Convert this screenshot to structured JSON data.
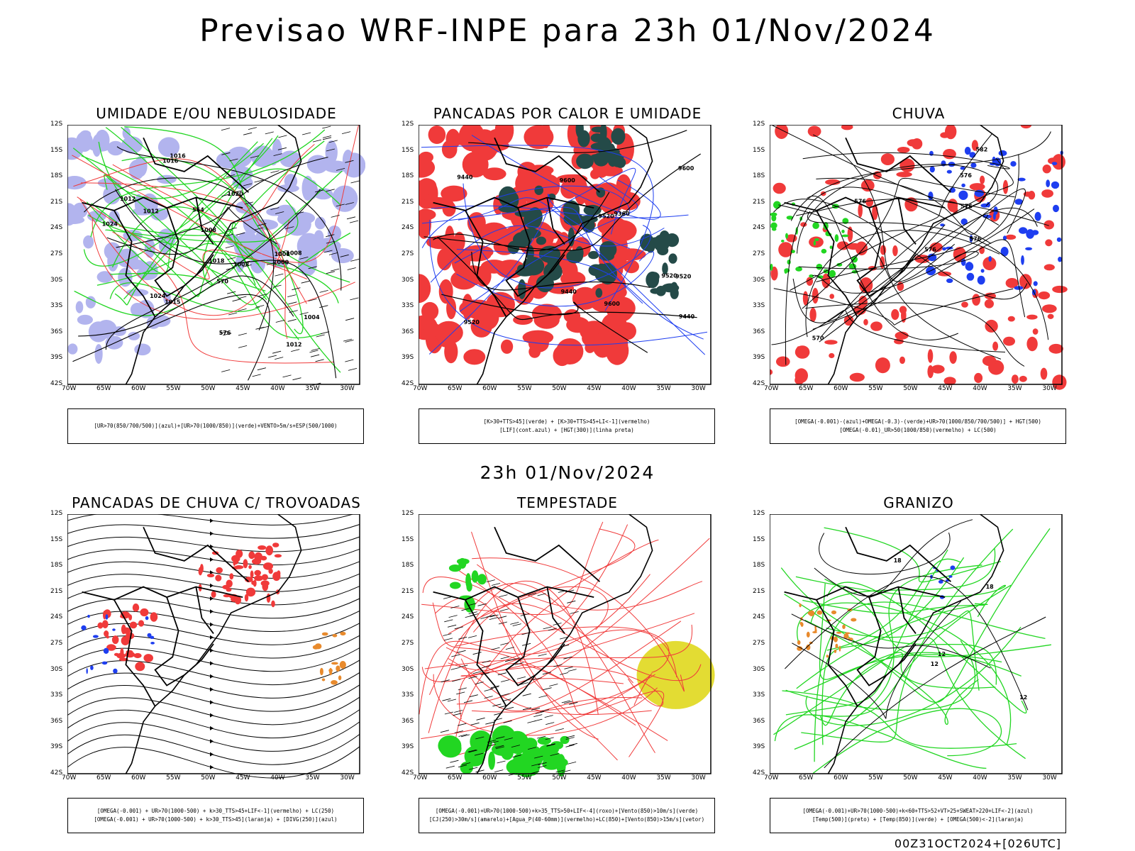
{
  "title": "Previsao WRF-INPE  para 23h 01/Nov/2024",
  "mid_label": "23h 01/Nov/2024",
  "footer": "00Z31OCT2024+[026UTC]",
  "lat_ticks": [
    "12S",
    "15S",
    "18S",
    "21S",
    "24S",
    "27S",
    "30S",
    "33S",
    "36S",
    "39S",
    "42S"
  ],
  "lon_ticks": [
    "70W",
    "65W",
    "60W",
    "55W",
    "50W",
    "45W",
    "40W",
    "35W",
    "30W"
  ],
  "colors": {
    "red": "#f03a3a",
    "blue": "#1e3ef0",
    "green": "#22d622",
    "lavender": "#b2b4ee",
    "darkteal": "#244a48",
    "orange": "#e88a2c",
    "yellow": "#e3dc33"
  },
  "panels": [
    {
      "title": "UMIDADE E/OU NEBULOSIDADE",
      "legend": [
        "[UR>70(850/700/500)](azul)+[UR>70(1000/850)](verde)+VENTO>5m/s+ESP(500/1000)"
      ],
      "labels": [
        "1012",
        "1012",
        "1008",
        "1016",
        "1015",
        "1020",
        "1024",
        "1008",
        "1004",
        "1000",
        "1016",
        "1008",
        "1012",
        "1008",
        "570",
        "576",
        "564",
        "1018",
        "1024"
      ]
    },
    {
      "title": "PANCADAS POR CALOR E UMIDADE",
      "legend": [
        "[K>30+TTS>45](verde) + [K>30+TTS>45+LI<-1](vermelho)",
        "[LIF](cont.azul) + [HGT(300)](linha preta)"
      ],
      "labels": [
        "9600",
        "9600",
        "9520",
        "9600",
        "9520",
        "9520",
        "9440",
        "9440",
        "9440",
        "9520",
        "9360"
      ]
    },
    {
      "title": "CHUVA",
      "legend": [
        "[OMEGA(-0.001)-(azul)+OMEGA(-0.3)-(verde)+UR>70(1000/850/700/500)] + HGT(500)",
        "[OMEGA(-0.01)_UR>50(1000/850)(vermelho) + LC(500)"
      ],
      "labels": [
        "582",
        "576",
        "576",
        "576",
        "576",
        "576",
        "570"
      ]
    },
    {
      "title": "PANCADAS DE CHUVA C/ TROVOADAS",
      "legend": [
        "[OMEGA(-0.001) + UR>70(1000-500) + k>30_TTS>45+LIF<-1](vermelho) + LC(250)",
        "[OMEGA(-0.001) + UR>70(1000-500) + k>30_TTS>45](laranja) + [DIVG(250)](azul)"
      ],
      "labels": []
    },
    {
      "title": "TEMPESTADE",
      "legend": [
        "[OMEGA(-0.001)+UR>70(1000-500)+k>35_TTS>50+LIF<-4](roxo)+[Vento(850)>10m/s](verde)",
        "[CJ(250)>30m/s](amarelo)+[Agua_P(40-60mm)](vermelho)+LC(850)+[Vento(850)>15m/s](vetor)"
      ],
      "labels": []
    },
    {
      "title": "GRANIZO",
      "legend": [
        "[OMEGA(-0.001)+UR>70(1000-500)+k<60+TTS>52+VT>25+SWEAT>220+LIF<-2](azul)",
        "[Temp(500)](preto) + [Temp(850)](verde) + [OMEGA(500)<-2](laranja)"
      ],
      "labels": [
        "12",
        "12",
        "12",
        "18",
        "18"
      ]
    }
  ]
}
